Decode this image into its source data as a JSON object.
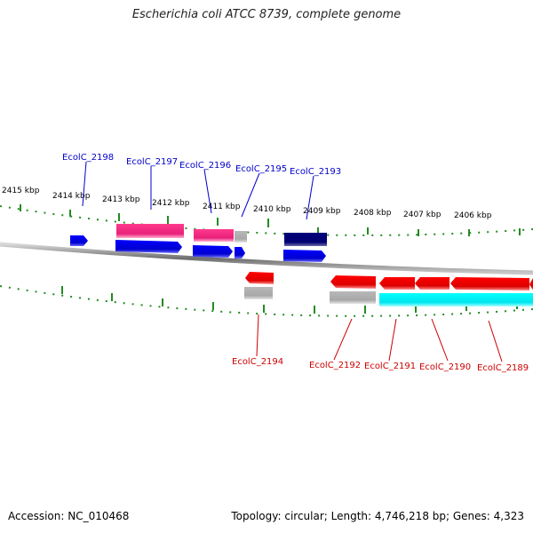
{
  "title": "Escherichia coli ATCC 8739, complete genome",
  "footer": {
    "accession": "Accession: NC_010468",
    "topology": "Topology: circular; Length: 4,746,218 bp; Genes: 4,323"
  },
  "colors": {
    "forward_label": "#0000cc",
    "reverse_label": "#cc0000",
    "tick": "#228b22",
    "backbone": "#888888"
  },
  "scale_ticks": [
    {
      "kbp": 2415,
      "label": "2415 kbp"
    },
    {
      "kbp": 2414,
      "label": "2414 kbp"
    },
    {
      "kbp": 2413,
      "label": "2413 kbp"
    },
    {
      "kbp": 2412,
      "label": "2412 kbp"
    },
    {
      "kbp": 2411,
      "label": "2411 kbp"
    },
    {
      "kbp": 2410,
      "label": "2410 kbp"
    },
    {
      "kbp": 2409,
      "label": "2409 kbp"
    },
    {
      "kbp": 2408,
      "label": "2408 kbp"
    },
    {
      "kbp": 2407,
      "label": "2407 kbp"
    },
    {
      "kbp": 2406,
      "label": "2406 kbp"
    }
  ],
  "gene_labels": [
    {
      "text": "EcolC_2198",
      "strand": "forward"
    },
    {
      "text": "EcolC_2197",
      "strand": "forward"
    },
    {
      "text": "EcolC_2196",
      "strand": "forward"
    },
    {
      "text": "EcolC_2195",
      "strand": "forward"
    },
    {
      "text": "EcolC_2193",
      "strand": "forward"
    },
    {
      "text": "EcolC_2194",
      "strand": "reverse"
    },
    {
      "text": "EcolC_2192",
      "strand": "reverse"
    },
    {
      "text": "EcolC_2191",
      "strand": "reverse"
    },
    {
      "text": "EcolC_2190",
      "strand": "reverse"
    },
    {
      "text": "EcolC_2189",
      "strand": "reverse"
    }
  ]
}
